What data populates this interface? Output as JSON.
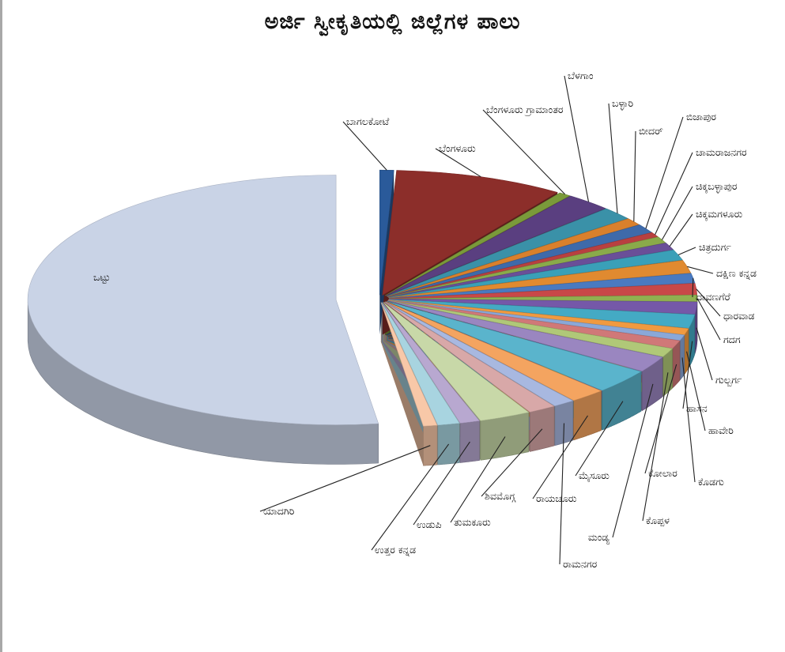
{
  "chart_data": {
    "type": "pie",
    "title": "ಅರ್ಜಿ ಸ್ವೀಕೃತಿಯಲ್ಲಿ ಜಿಲ್ಲೆಗಳ ಪಾಲು",
    "slices": [
      {
        "name": "ಬಾಗಲಕೋಟೆ",
        "value": 0.7,
        "color": "#2a5a9a"
      },
      {
        "name": "ಬೆಂಗಳೂರು",
        "value": 8.5,
        "color": "#8c2e2a"
      },
      {
        "name": "ಬೆಂಗಳೂರು ಗ್ರಾಮಾಂತರ",
        "value": 0.6,
        "color": "#7a9a3a"
      },
      {
        "name": "ಬೆಳಗಾಂ",
        "value": 2.3,
        "color": "#5a3f80"
      },
      {
        "name": "ಬಳ್ಳಾರಿ",
        "value": 1.6,
        "color": "#3a91a8"
      },
      {
        "name": "ಬೀದರ್",
        "value": 0.9,
        "color": "#d9802c"
      },
      {
        "name": "ಬಿಜಾಪುರ",
        "value": 1.1,
        "color": "#3e6aaa"
      },
      {
        "name": "ಚಾಮರಾಜನಗರ",
        "value": 0.6,
        "color": "#b84040"
      },
      {
        "name": "ಚಿಕ್ಕಬಳ್ಳಾಪುರ",
        "value": 0.8,
        "color": "#8aaa4a"
      },
      {
        "name": "ಚಿಕ್ಕಮಗಳೂರು",
        "value": 0.9,
        "color": "#6a4f98"
      },
      {
        "name": "ಚಿತ್ರದುರ್ಗ",
        "value": 1.3,
        "color": "#3aa0b8"
      },
      {
        "name": "ದಕ್ಷಿಣ ಕನ್ನಡ",
        "value": 1.6,
        "color": "#e08a30"
      },
      {
        "name": "ದಾವಣಗೆರೆ",
        "value": 1.2,
        "color": "#4a7ac0"
      },
      {
        "name": "ಧಾರವಾಡ",
        "value": 1.4,
        "color": "#c84848"
      },
      {
        "name": "ಗದಗ",
        "value": 0.8,
        "color": "#90b050"
      },
      {
        "name": "ಗುಲ್ಬರ್ಗ",
        "value": 1.5,
        "color": "#7558a8"
      },
      {
        "name": "ಹಾಸನ",
        "value": 1.7,
        "color": "#44aac4"
      },
      {
        "name": "ಹಾವೇರಿ",
        "value": 0.8,
        "color": "#f09a40"
      },
      {
        "name": "ಕೊಡಗು",
        "value": 0.7,
        "color": "#8aa8d8"
      },
      {
        "name": "ಕೋಲಾರ",
        "value": 1.0,
        "color": "#d07878"
      },
      {
        "name": "ಕೊಪ್ಪಳ",
        "value": 1.1,
        "color": "#b0c878"
      },
      {
        "name": "ಮಂಡ್ಯ",
        "value": 2.0,
        "color": "#9a86c0"
      },
      {
        "name": "ಮೈಸೂರು",
        "value": 3.0,
        "color": "#5ab4cc"
      },
      {
        "name": "ರಾಯಚೂರು",
        "value": 1.8,
        "color": "#f4a460"
      },
      {
        "name": "ರಾಮನಗರ",
        "value": 1.1,
        "color": "#a8b8e0"
      },
      {
        "name": "ಶಿವಮೊಗ್ಗ",
        "value": 1.4,
        "color": "#d8a8a8"
      },
      {
        "name": "ತುಮಕೂರು",
        "value": 2.6,
        "color": "#c8d8a8"
      },
      {
        "name": "ಉಡುಪಿ",
        "value": 1.0,
        "color": "#b8a8d0"
      },
      {
        "name": "ಉತ್ತರ ಕನ್ನಡ",
        "value": 1.1,
        "color": "#a8d4e0"
      },
      {
        "name": "ಯಾದಗಿರಿ",
        "value": 0.7,
        "color": "#f8c8a8"
      },
      {
        "name": "ಒಟ್ಟು",
        "value": 50.0,
        "color": "#c9d3e6"
      }
    ],
    "legend": "none"
  }
}
